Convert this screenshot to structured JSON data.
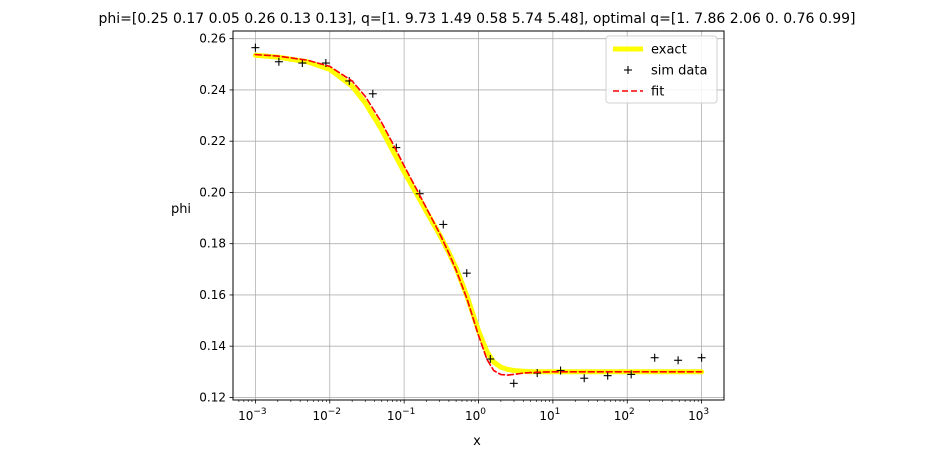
{
  "chart_data": {
    "type": "line",
    "title": "phi=[0.25 0.17 0.05 0.26 0.13 0.13], q=[1.   9.73 1.49 0.58 5.74 5.48], optimal q=[1.   7.86 2.06 0.   0.76 0.99]",
    "xlabel": "x",
    "ylabel": "phi",
    "x_scale": "log",
    "xlim": [
      0.0005,
      2000
    ],
    "ylim": [
      0.119,
      0.263
    ],
    "grid": true,
    "legend_placement": "top-right",
    "x_ticks": [
      {
        "value": 0.001,
        "base": "10",
        "exp": "−3"
      },
      {
        "value": 0.01,
        "base": "10",
        "exp": "−2"
      },
      {
        "value": 0.1,
        "base": "10",
        "exp": "−1"
      },
      {
        "value": 1,
        "base": "10",
        "exp": "0"
      },
      {
        "value": 10,
        "base": "10",
        "exp": "1"
      },
      {
        "value": 100,
        "base": "10",
        "exp": "2"
      },
      {
        "value": 1000,
        "base": "10",
        "exp": "3"
      }
    ],
    "y_ticks": [
      {
        "value": 0.12,
        "label": "0.12"
      },
      {
        "value": 0.14,
        "label": "0.14"
      },
      {
        "value": 0.16,
        "label": "0.16"
      },
      {
        "value": 0.18,
        "label": "0.18"
      },
      {
        "value": 0.2,
        "label": "0.20"
      },
      {
        "value": 0.22,
        "label": "0.22"
      },
      {
        "value": 0.24,
        "label": "0.24"
      },
      {
        "value": 0.26,
        "label": "0.26"
      }
    ],
    "series": [
      {
        "name": "exact",
        "style": "line",
        "color": "#ffff00",
        "x": [
          0.001,
          0.002,
          0.005,
          0.01,
          0.02,
          0.03,
          0.05,
          0.07,
          0.1,
          0.15,
          0.2,
          0.3,
          0.4,
          0.5,
          0.7,
          1.0,
          1.3,
          1.6,
          2.0,
          2.5,
          3.0,
          4.0,
          5.0,
          7.0,
          10,
          20,
          50,
          100,
          1000
        ],
        "y": [
          0.2535,
          0.2528,
          0.251,
          0.248,
          0.2415,
          0.235,
          0.2245,
          0.2165,
          0.208,
          0.199,
          0.1925,
          0.1835,
          0.1765,
          0.1705,
          0.1595,
          0.146,
          0.1378,
          0.1338,
          0.1318,
          0.1309,
          0.1305,
          0.1302,
          0.1301,
          0.13,
          0.13,
          0.13,
          0.13,
          0.13,
          0.13
        ]
      },
      {
        "name": "sim data",
        "style": "marker",
        "color": "#000000",
        "x": [
          0.001,
          0.00207,
          0.00428,
          0.00886,
          0.0183,
          0.0379,
          0.0785,
          0.162,
          0.336,
          0.695,
          1.44,
          2.98,
          6.16,
          12.7,
          26.4,
          54.6,
          113,
          234,
          483,
          1000
        ],
        "y": [
          0.2565,
          0.251,
          0.2505,
          0.2505,
          0.2435,
          0.2385,
          0.2175,
          0.1995,
          0.1875,
          0.1685,
          0.135,
          0.1255,
          0.1295,
          0.1305,
          0.1275,
          0.1285,
          0.129,
          0.1355,
          0.1345,
          0.1355
        ]
      },
      {
        "name": "fit",
        "style": "dashed",
        "color": "#ff0000",
        "x": [
          0.001,
          0.002,
          0.005,
          0.01,
          0.02,
          0.03,
          0.05,
          0.07,
          0.1,
          0.15,
          0.2,
          0.3,
          0.4,
          0.5,
          0.7,
          1.0,
          1.3,
          1.6,
          2.0,
          2.5,
          3.0,
          4.0,
          5.0,
          7.0,
          10,
          20,
          50,
          100,
          1000
        ],
        "y": [
          0.2538,
          0.2532,
          0.2516,
          0.2492,
          0.2435,
          0.2375,
          0.2272,
          0.2192,
          0.2104,
          0.2008,
          0.1938,
          0.184,
          0.1762,
          0.1697,
          0.1585,
          0.1442,
          0.1348,
          0.1305,
          0.1289,
          0.1287,
          0.129,
          0.1295,
          0.1297,
          0.1299,
          0.13,
          0.13,
          0.13,
          0.13,
          0.13
        ]
      }
    ]
  }
}
